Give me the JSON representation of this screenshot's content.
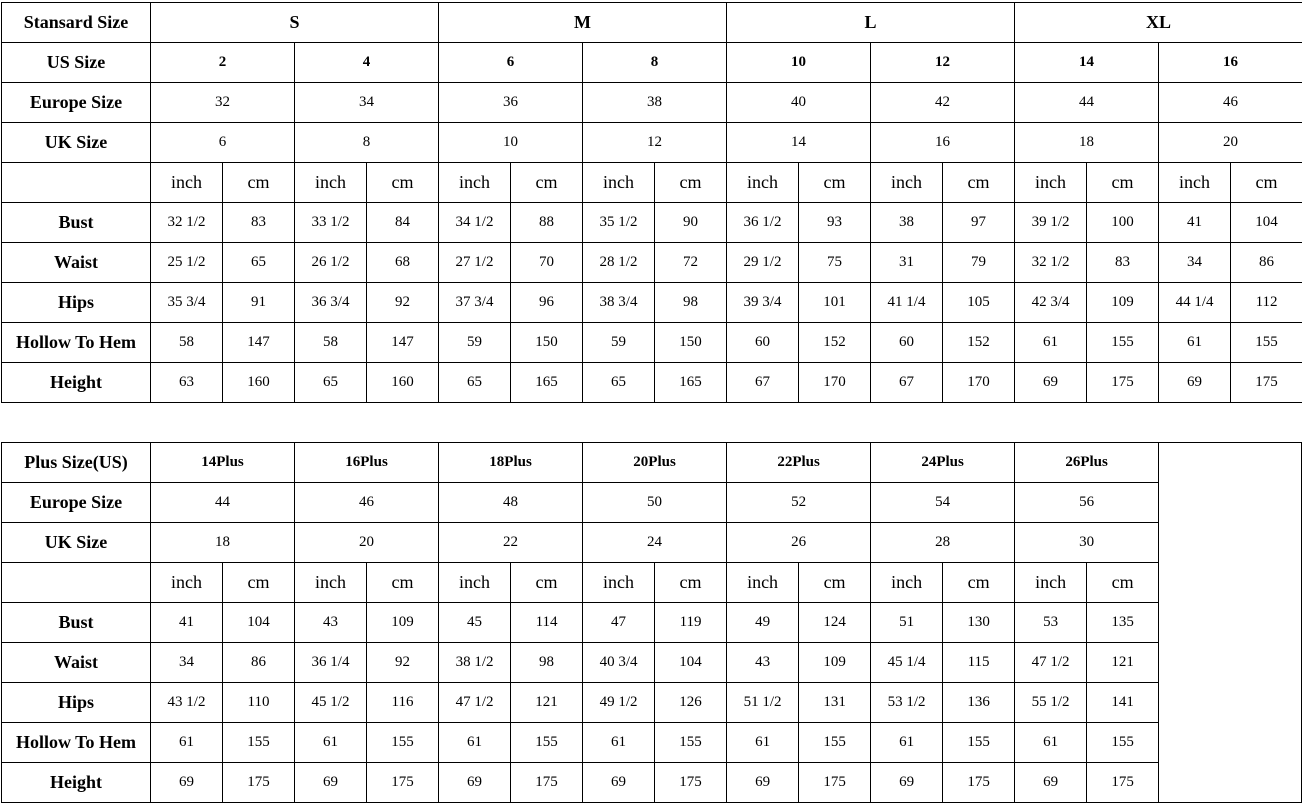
{
  "standard": {
    "header_label": "Stansard Size",
    "groups": [
      "S",
      "M",
      "L",
      "XL"
    ],
    "us_label": "US Size",
    "us": [
      "2",
      "4",
      "6",
      "8",
      "10",
      "12",
      "14",
      "16"
    ],
    "europe_label": "Europe Size",
    "europe": [
      "32",
      "34",
      "36",
      "38",
      "40",
      "42",
      "44",
      "46"
    ],
    "uk_label": "UK Size",
    "uk": [
      "6",
      "8",
      "10",
      "12",
      "14",
      "16",
      "18",
      "20"
    ],
    "units": [
      "inch",
      "cm"
    ],
    "measurements": [
      {
        "label": "Bust",
        "values": [
          "32 1/2",
          "83",
          "33 1/2",
          "84",
          "34 1/2",
          "88",
          "35 1/2",
          "90",
          "36 1/2",
          "93",
          "38",
          "97",
          "39 1/2",
          "100",
          "41",
          "104"
        ]
      },
      {
        "label": "Waist",
        "values": [
          "25 1/2",
          "65",
          "26 1/2",
          "68",
          "27 1/2",
          "70",
          "28 1/2",
          "72",
          "29 1/2",
          "75",
          "31",
          "79",
          "32 1/2",
          "83",
          "34",
          "86"
        ]
      },
      {
        "label": "Hips",
        "values": [
          "35 3/4",
          "91",
          "36 3/4",
          "92",
          "37 3/4",
          "96",
          "38 3/4",
          "98",
          "39 3/4",
          "101",
          "41 1/4",
          "105",
          "42 3/4",
          "109",
          "44 1/4",
          "112"
        ]
      },
      {
        "label": "Hollow To Hem",
        "values": [
          "58",
          "147",
          "58",
          "147",
          "59",
          "150",
          "59",
          "150",
          "60",
          "152",
          "60",
          "152",
          "61",
          "155",
          "61",
          "155"
        ]
      },
      {
        "label": "Height",
        "values": [
          "63",
          "160",
          "65",
          "160",
          "65",
          "165",
          "65",
          "165",
          "67",
          "170",
          "67",
          "170",
          "69",
          "175",
          "69",
          "175"
        ]
      }
    ]
  },
  "plus": {
    "header_label": "Plus Size(US)",
    "sizes": [
      "14Plus",
      "16Plus",
      "18Plus",
      "20Plus",
      "22Plus",
      "24Plus",
      "26Plus"
    ],
    "europe_label": "Europe Size",
    "europe": [
      "44",
      "46",
      "48",
      "50",
      "52",
      "54",
      "56"
    ],
    "uk_label": "UK Size",
    "uk": [
      "18",
      "20",
      "22",
      "24",
      "26",
      "28",
      "30"
    ],
    "units": [
      "inch",
      "cm"
    ],
    "measurements": [
      {
        "label": "Bust",
        "values": [
          "41",
          "104",
          "43",
          "109",
          "45",
          "114",
          "47",
          "119",
          "49",
          "124",
          "51",
          "130",
          "53",
          "135"
        ]
      },
      {
        "label": "Waist",
        "values": [
          "34",
          "86",
          "36 1/4",
          "92",
          "38 1/2",
          "98",
          "40 3/4",
          "104",
          "43",
          "109",
          "45 1/4",
          "115",
          "47 1/2",
          "121"
        ]
      },
      {
        "label": "Hips",
        "values": [
          "43 1/2",
          "110",
          "45 1/2",
          "116",
          "47 1/2",
          "121",
          "49 1/2",
          "126",
          "51 1/2",
          "131",
          "53 1/2",
          "136",
          "55 1/2",
          "141"
        ]
      },
      {
        "label": "Hollow To Hem",
        "values": [
          "61",
          "155",
          "61",
          "155",
          "61",
          "155",
          "61",
          "155",
          "61",
          "155",
          "61",
          "155",
          "61",
          "155"
        ]
      },
      {
        "label": "Height",
        "values": [
          "69",
          "175",
          "69",
          "175",
          "69",
          "175",
          "69",
          "175",
          "69",
          "175",
          "69",
          "175",
          "69",
          "175"
        ]
      }
    ]
  }
}
